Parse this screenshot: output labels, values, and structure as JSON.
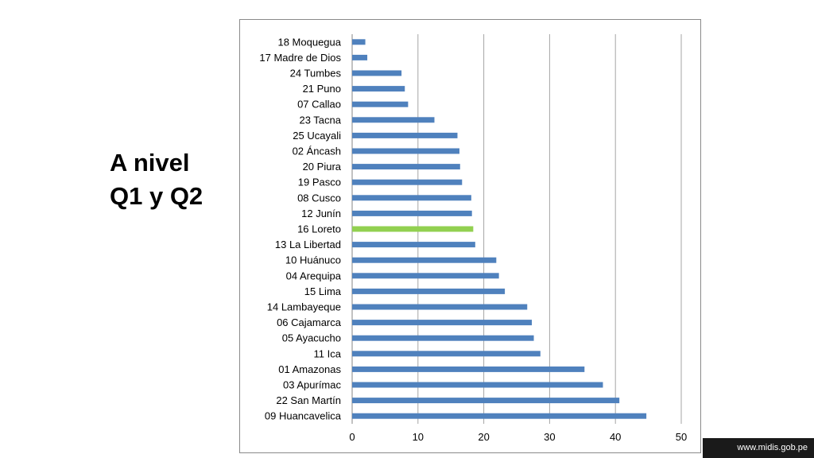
{
  "slide": {
    "title_line1": "A nivel",
    "title_line2": "Q1 y Q2",
    "footer_url": "www.midis.gob.pe"
  },
  "colors": {
    "bar": "#4f81bd",
    "highlight_bar": "#92d050",
    "grid": "#a6a6a6",
    "axis": "#868686",
    "footer_bg": "#1a1a1a"
  },
  "chart_data": {
    "type": "bar",
    "orientation": "horizontal",
    "categories": [
      "18 Moquegua",
      "17 Madre de Dios",
      "24 Tumbes",
      "21 Puno",
      "07 Callao",
      "23 Tacna",
      "25 Ucayali",
      "02 Áncash",
      "20 Piura",
      "19 Pasco",
      "08 Cusco",
      "12 Junín",
      "16 Loreto",
      "13 La Libertad",
      "10 Huánuco",
      "04 Arequipa",
      "15 Lima",
      "14 Lambayeque",
      "06 Cajamarca",
      "05 Ayacucho",
      "11 Ica",
      "01 Amazonas",
      "03 Apurímac",
      "22 San Martín",
      "09 Huancavelica"
    ],
    "values": [
      2.0,
      2.3,
      7.5,
      8.0,
      8.5,
      12.5,
      16.0,
      16.3,
      16.4,
      16.7,
      18.1,
      18.2,
      18.4,
      18.7,
      21.9,
      22.3,
      23.2,
      26.6,
      27.3,
      27.6,
      28.6,
      35.3,
      38.1,
      40.6,
      44.7
    ],
    "highlight": "16 Loreto",
    "xlim": [
      0,
      50
    ],
    "xticks": [
      "0",
      "10",
      "20",
      "30",
      "40",
      "50"
    ],
    "grid": "vertical",
    "legend": "none",
    "title": "",
    "xlabel": "",
    "ylabel": ""
  }
}
